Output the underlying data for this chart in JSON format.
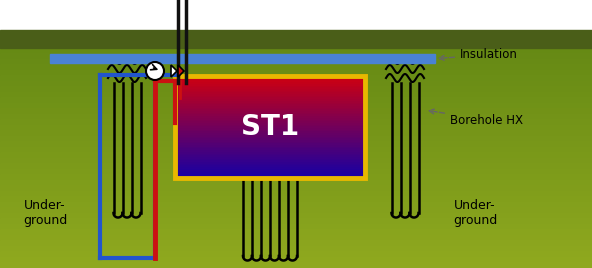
{
  "fig_width": 5.92,
  "fig_height": 2.68,
  "dpi": 100,
  "ground_strip_color": "#4a5e18",
  "ground_body_top": "#6a8c28",
  "ground_body_bot": "#8ab040",
  "insulation_color": "#4a82d4",
  "insulation_label": "Insulation",
  "borehole_label": "Borehole HX",
  "st1_label": "ST1",
  "underground_label": "Under-\nground",
  "tank_border_color": "#e8b800",
  "pipe_blue": "#2255cc",
  "pipe_red": "#cc1111",
  "white": "#ffffff",
  "black": "#111111",
  "annotation_color": "#555555"
}
